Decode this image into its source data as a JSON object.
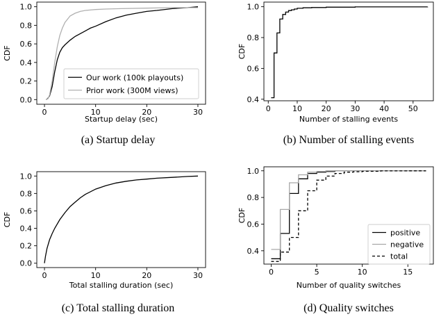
{
  "chart_data": [
    {
      "type": "line",
      "step": false,
      "xlabel": "Startup delay (sec)",
      "ylabel": "CDF",
      "caption": "(a) Startup delay",
      "xlim": [
        -1.5,
        31.5
      ],
      "ylim": [
        -0.05,
        1.05
      ],
      "xticks": [
        0,
        10,
        20,
        30
      ],
      "yticks": [
        0.0,
        0.2,
        0.4,
        0.6,
        0.8,
        1.0
      ],
      "ytick_labels": [
        "0.0",
        "0.2",
        "0.4",
        "0.6",
        "0.8",
        "1.0"
      ],
      "legend": "bottom-right",
      "series": [
        {
          "name": "Our work (100k playouts)",
          "color": "#000000",
          "dash": "",
          "x": [
            0.3,
            0.6,
            1,
            1.5,
            2,
            2.5,
            3,
            3.5,
            4,
            5,
            6,
            7,
            8,
            9,
            10,
            12,
            14,
            16,
            18,
            20,
            22,
            25,
            28,
            30
          ],
          "y": [
            0.0,
            0.01,
            0.04,
            0.14,
            0.3,
            0.43,
            0.51,
            0.56,
            0.59,
            0.64,
            0.68,
            0.71,
            0.74,
            0.77,
            0.79,
            0.84,
            0.88,
            0.91,
            0.93,
            0.95,
            0.96,
            0.98,
            0.99,
            1.0
          ]
        },
        {
          "name": "Prior work (300M views)",
          "color": "#b0b0b0",
          "dash": "",
          "x": [
            0.3,
            0.7,
            1,
            1.5,
            2,
            2.5,
            3,
            3.5,
            4,
            5,
            6,
            7,
            8,
            10,
            12,
            15,
            20,
            25,
            30
          ],
          "y": [
            0.0,
            0.01,
            0.05,
            0.2,
            0.4,
            0.57,
            0.69,
            0.77,
            0.83,
            0.9,
            0.93,
            0.95,
            0.96,
            0.97,
            0.975,
            0.98,
            0.985,
            0.99,
            0.99
          ]
        }
      ]
    },
    {
      "type": "line",
      "step": true,
      "xlabel": "Number of stalling events",
      "ylabel": "CDF",
      "caption": "(b) Number of stalling events",
      "xlim": [
        -1.5,
        57
      ],
      "ylim": [
        0.39,
        1.03
      ],
      "xticks": [
        0,
        10,
        20,
        30,
        40,
        50
      ],
      "yticks": [
        0.4,
        0.6,
        0.8,
        1.0
      ],
      "ytick_labels": [
        "0.4",
        "0.6",
        "0.8",
        "1.0"
      ],
      "legend": "none",
      "series": [
        {
          "name": "",
          "color": "#000000",
          "dash": "",
          "x": [
            1,
            2,
            3,
            4,
            5,
            6,
            7,
            8,
            9,
            10,
            12,
            15,
            20,
            30,
            55
          ],
          "y": [
            0.41,
            0.7,
            0.83,
            0.92,
            0.95,
            0.965,
            0.975,
            0.98,
            0.985,
            0.99,
            0.993,
            0.995,
            0.997,
            0.999,
            1.0
          ]
        }
      ]
    },
    {
      "type": "line",
      "step": false,
      "xlabel": "Total stalling duration (sec)",
      "ylabel": "CDF",
      "caption": "(c) Total stalling duration",
      "xlim": [
        -1.5,
        31.5
      ],
      "ylim": [
        -0.05,
        1.05
      ],
      "xticks": [
        0,
        10,
        20,
        30
      ],
      "yticks": [
        0.0,
        0.2,
        0.4,
        0.6,
        0.8,
        1.0
      ],
      "ytick_labels": [
        "0.0",
        "0.2",
        "0.4",
        "0.6",
        "0.8",
        "1.0"
      ],
      "legend": "none",
      "series": [
        {
          "name": "",
          "color": "#000000",
          "dash": "",
          "x": [
            0,
            0.2,
            0.5,
            1,
            1.5,
            2,
            3,
            4,
            5,
            6,
            7,
            8,
            10,
            12,
            14,
            16,
            18,
            20,
            22,
            25,
            28,
            30
          ],
          "y": [
            0.0,
            0.08,
            0.17,
            0.27,
            0.34,
            0.4,
            0.5,
            0.58,
            0.65,
            0.7,
            0.75,
            0.79,
            0.85,
            0.89,
            0.92,
            0.94,
            0.955,
            0.965,
            0.975,
            0.985,
            0.995,
            1.0
          ]
        }
      ]
    },
    {
      "type": "line",
      "step": true,
      "xlabel": "Number of quality switches",
      "ylabel": "CDF",
      "caption": "(d) Quality switches",
      "xlim": [
        -0.8,
        17.8
      ],
      "ylim": [
        0.3,
        1.03
      ],
      "xticks": [
        0,
        5,
        10,
        15
      ],
      "yticks": [
        0.4,
        0.6,
        0.8,
        1.0
      ],
      "ytick_labels": [
        "0.4",
        "0.6",
        "0.8",
        "1.0"
      ],
      "legend": "bottom-right",
      "series": [
        {
          "name": "positive",
          "color": "#000000",
          "dash": "",
          "x": [
            0,
            1,
            2,
            3,
            4,
            5,
            6,
            7,
            8,
            9,
            17
          ],
          "y": [
            0.34,
            0.53,
            0.83,
            0.94,
            0.98,
            0.99,
            0.995,
            1.0,
            1.0,
            1.0,
            1.0
          ]
        },
        {
          "name": "negative",
          "color": "#a8a8a8",
          "dash": "",
          "x": [
            0,
            1,
            2,
            3,
            4,
            5,
            6,
            7,
            8,
            17
          ],
          "y": [
            0.41,
            0.71,
            0.91,
            0.97,
            0.99,
            0.995,
            1.0,
            1.0,
            1.0,
            1.0
          ]
        },
        {
          "name": "total",
          "color": "#000000",
          "dash": "4,3",
          "x": [
            0,
            1,
            2,
            3,
            4,
            5,
            6,
            7,
            8,
            9,
            10,
            12,
            15,
            17
          ],
          "y": [
            0.32,
            0.39,
            0.5,
            0.7,
            0.85,
            0.93,
            0.96,
            0.98,
            0.99,
            0.993,
            0.996,
            0.999,
            1.0,
            1.0
          ]
        }
      ]
    }
  ]
}
